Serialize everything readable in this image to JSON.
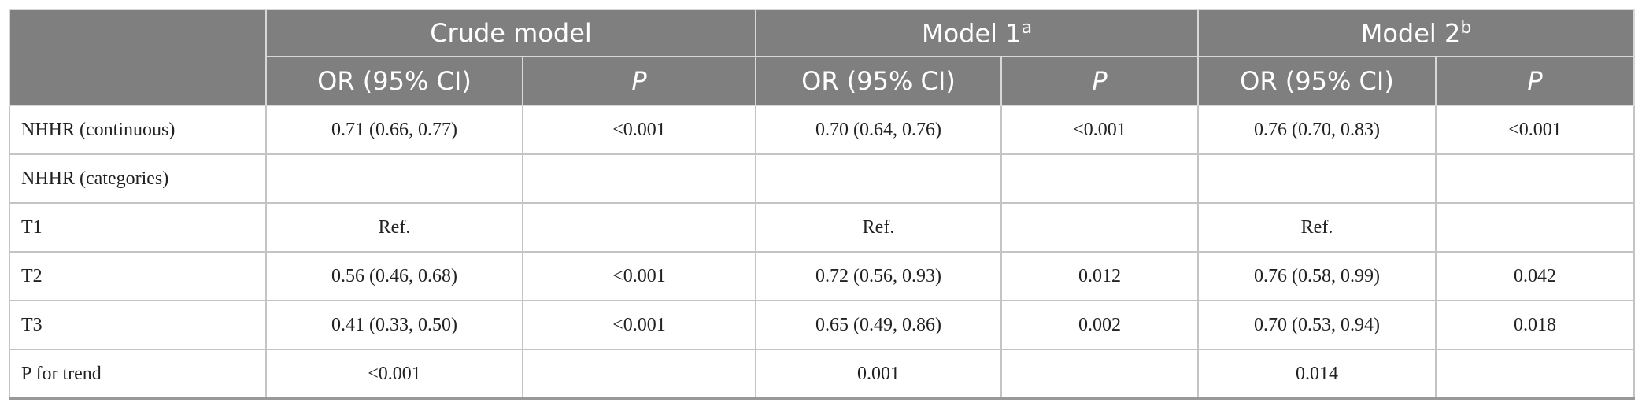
{
  "header": {
    "groups": [
      {
        "label": "Crude model"
      },
      {
        "label": "Model 1",
        "sup": "a"
      },
      {
        "label": "Model 2",
        "sup": "b"
      }
    ],
    "subheaders": [
      "OR (95% CI)",
      "P",
      "OR (95% CI)",
      "P",
      "OR (95% CI)",
      "P"
    ]
  },
  "table": {
    "rows": [
      [
        "NHHR (continuous)",
        "0.71 (0.66, 0.77)",
        "<0.001",
        "0.70 (0.64, 0.76)",
        "<0.001",
        "0.76 (0.70, 0.83)",
        "<0.001"
      ],
      [
        "NHHR (categories)",
        null,
        null,
        null,
        null,
        null,
        null
      ],
      [
        "T1",
        "Ref.",
        null,
        "Ref.",
        null,
        "Ref.",
        null
      ],
      [
        "T2",
        "0.56 (0.46, 0.68)",
        "<0.001",
        "0.72 (0.56, 0.93)",
        "0.012",
        "0.76 (0.58, 0.99)",
        "0.042"
      ],
      [
        "T3",
        "0.41 (0.33, 0.50)",
        "<0.001",
        "0.65 (0.49, 0.86)",
        "0.002",
        "0.70 (0.53, 0.94)",
        "0.018"
      ],
      [
        "P for trend",
        "<0.001",
        null,
        "0.001",
        null,
        "0.014",
        null
      ]
    ]
  }
}
